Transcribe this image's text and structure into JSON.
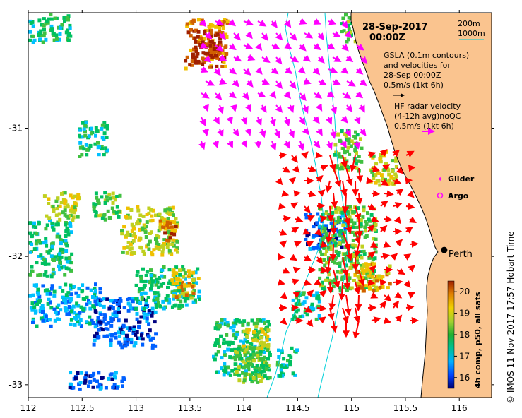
{
  "title": {
    "date": "28-Sep-2017",
    "time": "00:00Z"
  },
  "bathymetry_legend": {
    "label_200": "200m",
    "label_1000": "1000m"
  },
  "gsla_legend": {
    "line1": "GSLA (0.1m contours)",
    "line2": "and velocities for",
    "line3": "28-Sep 00:00Z",
    "line4": "0.5m/s (1kt 6h)"
  },
  "radar_legend": {
    "line1": "HF radar velocity",
    "line2": "(4-12h avg)noQC",
    "line3": "0.5m/s (1kt 6h)"
  },
  "markers": {
    "glider": "Glider",
    "argo": "Argo"
  },
  "place": {
    "city": "Perth",
    "city_lon": 115.86,
    "city_lat": -31.95
  },
  "colorbar": {
    "label": "4h comp, p50, all sats",
    "min": 15.5,
    "max": 20.5,
    "ticks": [
      "16",
      "17",
      "18",
      "19",
      "20"
    ]
  },
  "axes": {
    "x_ticks": [
      "112",
      "112.5",
      "113",
      "113.5",
      "114",
      "114.5",
      "115",
      "115.5",
      "116"
    ],
    "y_ticks": [
      "-31",
      "-32",
      "-33"
    ],
    "lon_range": [
      112,
      116.3
    ],
    "lat_range": [
      -33.1,
      -30.1
    ]
  },
  "credit": "© IMOS 11-Nov-2017 17:57 Hobart Time",
  "colors": {
    "land": "#fac48f",
    "gsla_vector": "#ff00ff",
    "radar_vector": "#ff0000",
    "contour": "#00d0d8",
    "colormap": [
      "#000080",
      "#0060ff",
      "#00c0ff",
      "#00c060",
      "#40c040",
      "#c0d020",
      "#f0c000",
      "#d06000",
      "#a02000"
    ]
  }
}
